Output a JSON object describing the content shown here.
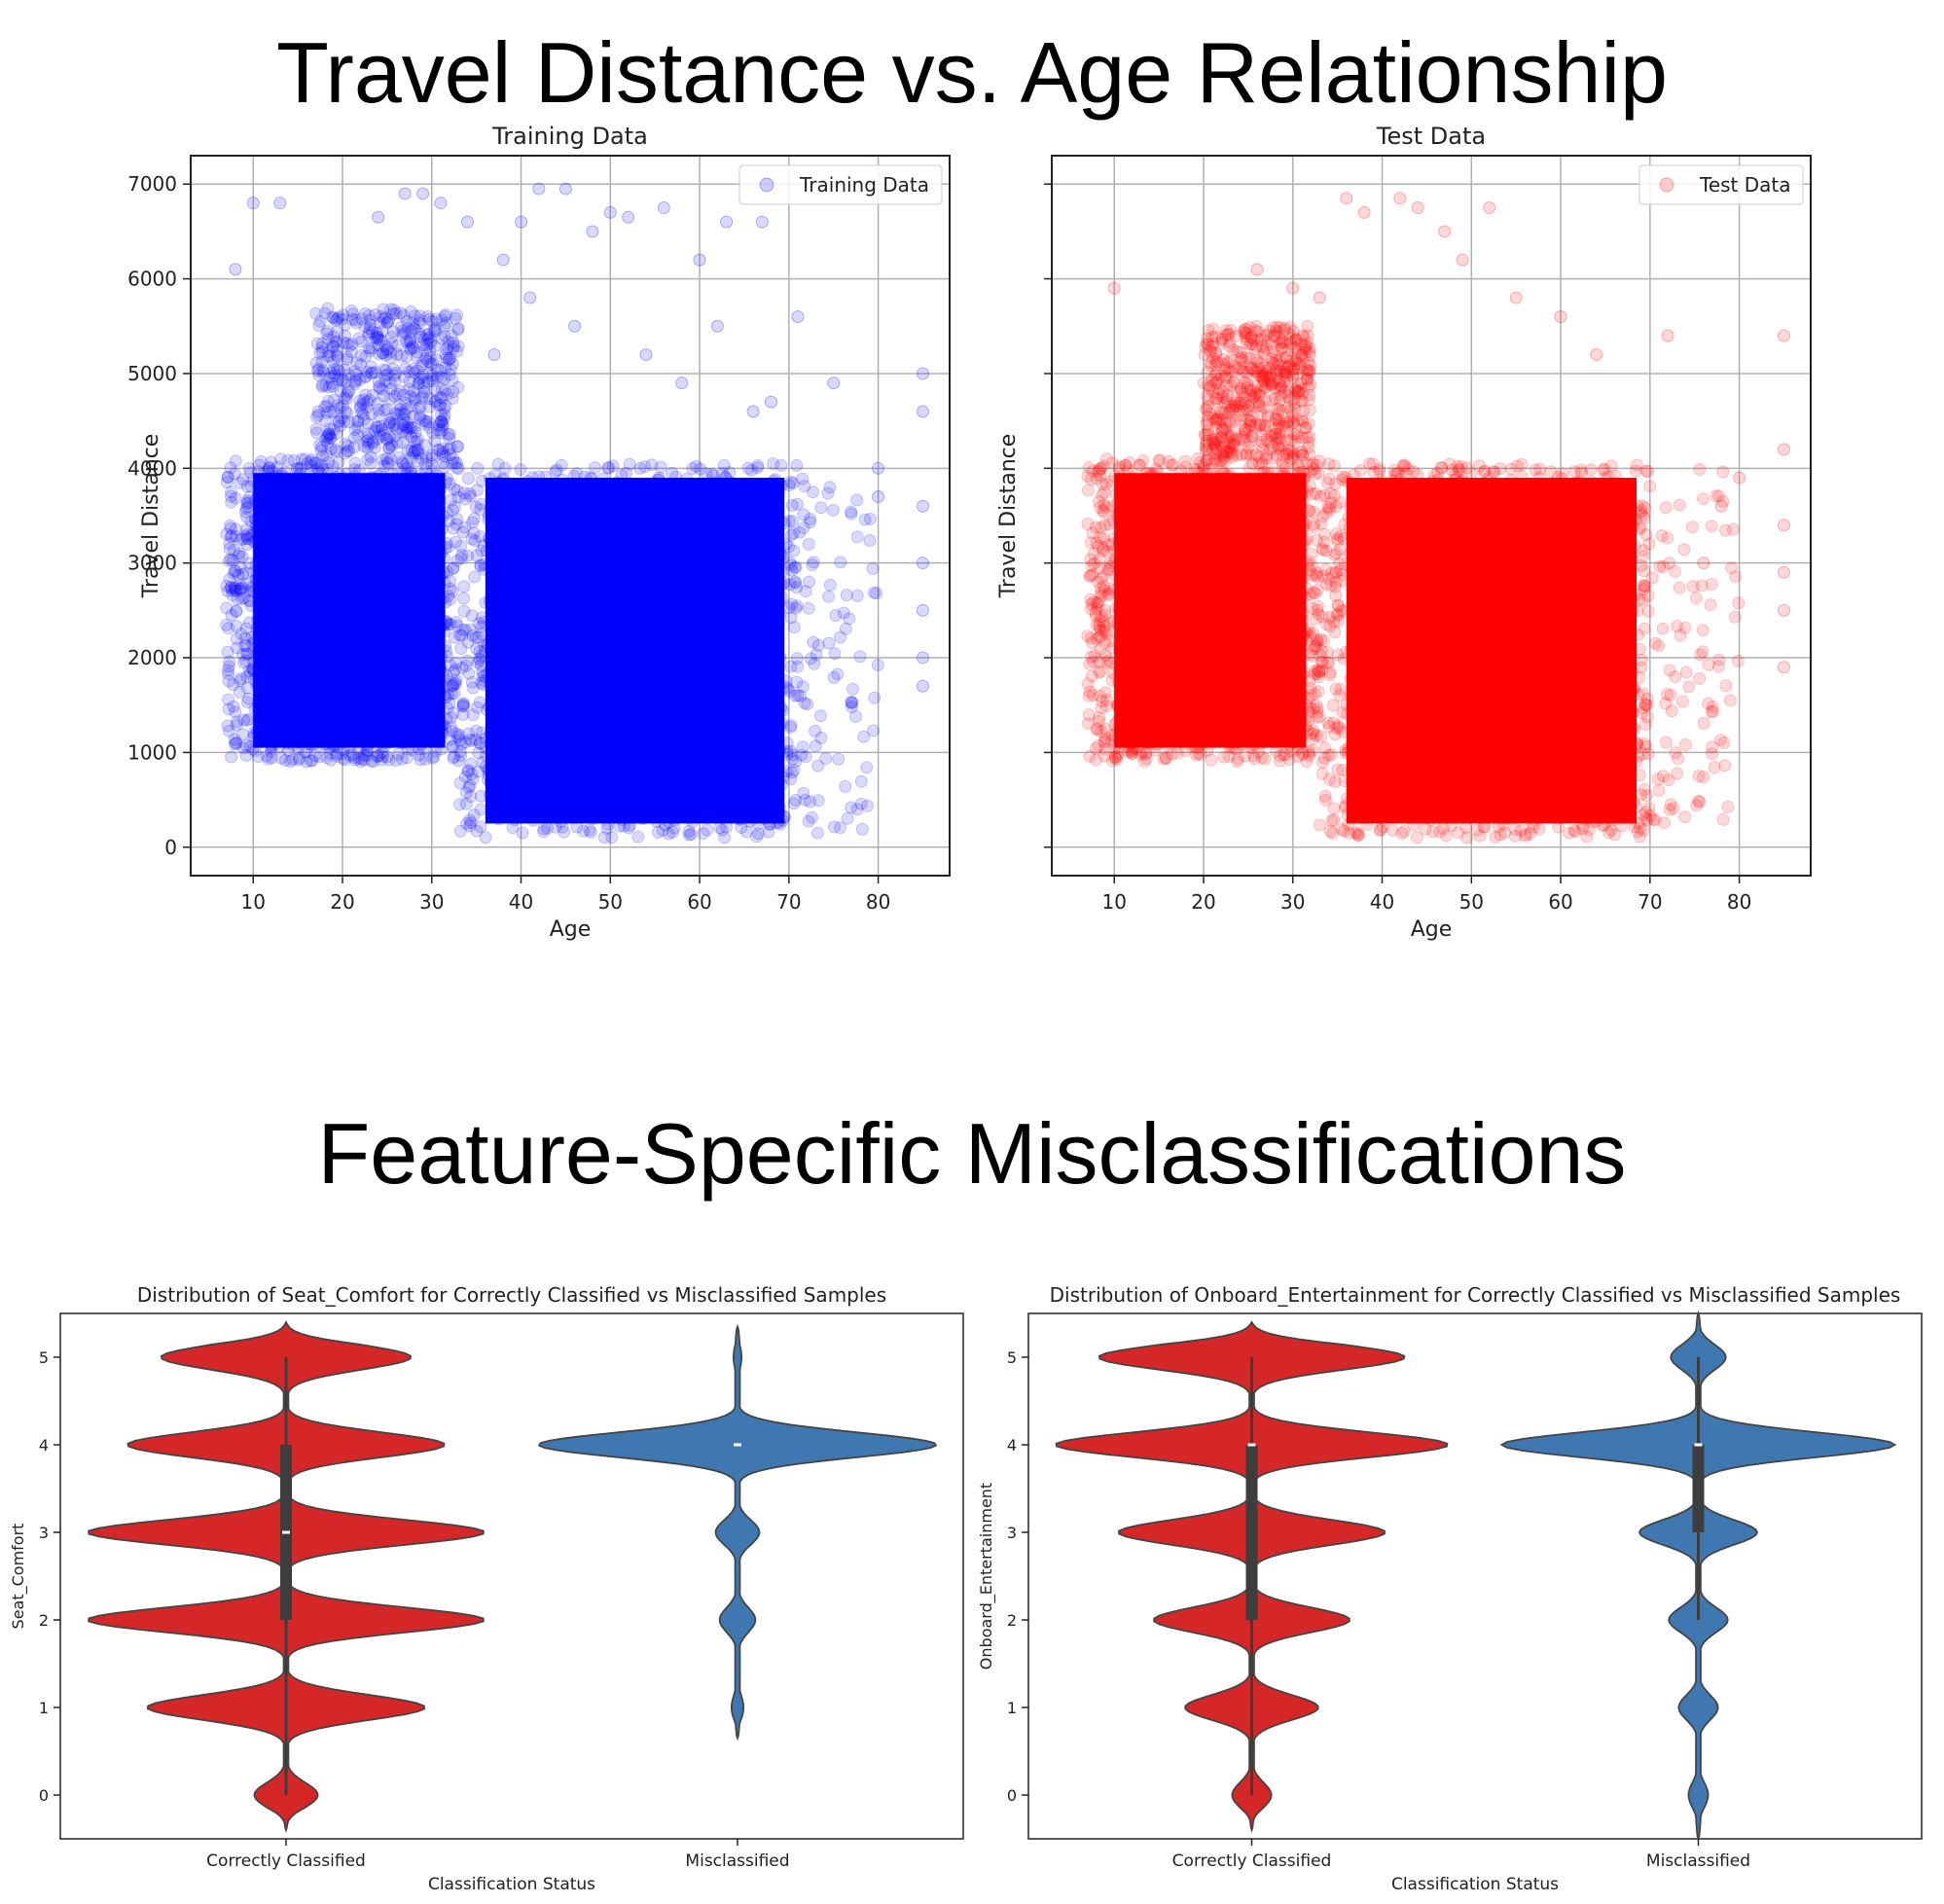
{
  "sections": {
    "top_title": "Travel Distance vs. Age Relationship",
    "bottom_title": "Feature-Specific Misclassifications"
  },
  "chart_data": [
    {
      "id": "train",
      "type": "scatter",
      "title": "Training Data",
      "xlabel": "Age",
      "ylabel": "Travel Distance",
      "xlim": [
        3,
        88
      ],
      "ylim": [
        -300,
        7300
      ],
      "xticks": [
        10,
        20,
        30,
        40,
        50,
        60,
        70,
        80
      ],
      "yticks": [
        0,
        1000,
        2000,
        3000,
        4000,
        5000,
        6000,
        7000
      ],
      "grid": true,
      "legend": {
        "position": "top-right",
        "entries": [
          "Training Data"
        ]
      },
      "color": "#0000ff",
      "alpha": 0.15,
      "density_regions": [
        {
          "x": [
            7,
            33
          ],
          "y": [
            900,
            4100
          ],
          "density": "very high"
        },
        {
          "x": [
            17,
            33
          ],
          "y": [
            4100,
            5700
          ],
          "density": "high"
        },
        {
          "x": [
            33,
            71
          ],
          "y": [
            100,
            4050
          ],
          "density": "very high"
        },
        {
          "x": [
            71,
            80
          ],
          "y": [
            100,
            4000
          ],
          "density": "low"
        }
      ],
      "points": [
        [
          8,
          6100
        ],
        [
          10,
          6800
        ],
        [
          13,
          6800
        ],
        [
          24,
          6650
        ],
        [
          27,
          6900
        ],
        [
          29,
          6900
        ],
        [
          31,
          6800
        ],
        [
          34,
          6600
        ],
        [
          38,
          6200
        ],
        [
          40,
          6600
        ],
        [
          42,
          6950
        ],
        [
          45,
          6950
        ],
        [
          48,
          6500
        ],
        [
          50,
          6700
        ],
        [
          52,
          6650
        ],
        [
          56,
          6750
        ],
        [
          60,
          6200
        ],
        [
          63,
          6600
        ],
        [
          67,
          6600
        ],
        [
          71,
          5600
        ],
        [
          75,
          4900
        ],
        [
          80,
          4000
        ],
        [
          80,
          3700
        ],
        [
          85,
          5000
        ],
        [
          85,
          4600
        ],
        [
          85,
          3600
        ],
        [
          85,
          3000
        ],
        [
          85,
          2500
        ],
        [
          85,
          2000
        ],
        [
          85,
          1700
        ],
        [
          37,
          5200
        ],
        [
          41,
          5800
        ],
        [
          46,
          5500
        ],
        [
          54,
          5200
        ],
        [
          58,
          4900
        ],
        [
          62,
          5500
        ],
        [
          66,
          4600
        ],
        [
          68,
          4700
        ]
      ]
    },
    {
      "id": "test",
      "type": "scatter",
      "title": "Test Data",
      "xlabel": "Age",
      "ylabel": "Travel Distance",
      "xlim": [
        3,
        88
      ],
      "ylim": [
        -300,
        7300
      ],
      "xticks": [
        10,
        20,
        30,
        40,
        50,
        60,
        70,
        80
      ],
      "yticks": [
        0,
        1000,
        2000,
        3000,
        4000,
        5000,
        6000,
        7000
      ],
      "grid": true,
      "legend": {
        "position": "top-right",
        "entries": [
          "Test Data"
        ]
      },
      "color": "#ff0000",
      "alpha": 0.15,
      "density_regions": [
        {
          "x": [
            7,
            33
          ],
          "y": [
            900,
            4100
          ],
          "density": "very high"
        },
        {
          "x": [
            20,
            32
          ],
          "y": [
            4100,
            5500
          ],
          "density": "high"
        },
        {
          "x": [
            33,
            70
          ],
          "y": [
            100,
            4050
          ],
          "density": "very high"
        },
        {
          "x": [
            70,
            80
          ],
          "y": [
            100,
            4000
          ],
          "density": "low"
        }
      ],
      "points": [
        [
          10,
          5900
        ],
        [
          36,
          6850
        ],
        [
          38,
          6700
        ],
        [
          42,
          6850
        ],
        [
          44,
          6750
        ],
        [
          47,
          6500
        ],
        [
          49,
          6200
        ],
        [
          52,
          6750
        ],
        [
          30,
          5900
        ],
        [
          26,
          6100
        ],
        [
          33,
          5800
        ],
        [
          55,
          5800
        ],
        [
          60,
          5600
        ],
        [
          64,
          5200
        ],
        [
          72,
          5400
        ],
        [
          85,
          5400
        ],
        [
          85,
          4200
        ],
        [
          85,
          3400
        ],
        [
          85,
          2900
        ],
        [
          85,
          2500
        ],
        [
          85,
          1900
        ],
        [
          80,
          3900
        ],
        [
          78,
          3600
        ],
        [
          76,
          3000
        ]
      ]
    },
    {
      "id": "seat",
      "type": "violin",
      "title": "Distribution of Seat_Comfort for Correctly Classified vs Misclassified Samples",
      "xlabel": "Classification Status",
      "ylabel": "Seat_Comfort",
      "categories": [
        "Correctly Classified",
        "Misclassified"
      ],
      "ylim": [
        -0.5,
        5.5
      ],
      "yticks": [
        0,
        1,
        2,
        3,
        4,
        5
      ],
      "series": [
        {
          "color": "#d62728",
          "extent": [
            -0.4,
            5.4
          ],
          "modes": [
            [
              0,
              0.16
            ],
            [
              1,
              0.7
            ],
            [
              2,
              1.0
            ],
            [
              3,
              1.0
            ],
            [
              4,
              0.8
            ],
            [
              5,
              0.63
            ]
          ],
          "q1": 2,
          "median": 3,
          "q3": 4,
          "whisker": [
            0,
            5
          ]
        },
        {
          "color": "#3f78b0",
          "extent": [
            0.65,
            5.35
          ],
          "modes": [
            [
              1,
              0.03
            ],
            [
              2,
              0.09
            ],
            [
              3,
              0.11
            ],
            [
              4,
              1.0
            ],
            [
              5,
              0.02
            ]
          ],
          "q1": 4,
          "median": 4,
          "q3": 4,
          "whisker": [
            4,
            4
          ]
        }
      ]
    },
    {
      "id": "entertainment",
      "type": "violin",
      "title": "Distribution of Onboard_Entertainment for Correctly Classified vs Misclassified Samples",
      "xlabel": "Classification Status",
      "ylabel": "Onboard_Entertainment",
      "categories": [
        "Correctly Classified",
        "Misclassified"
      ],
      "ylim": [
        -0.5,
        5.5
      ],
      "yticks": [
        0,
        1,
        2,
        3,
        4,
        5
      ],
      "series": [
        {
          "color": "#d62728",
          "extent": [
            -0.4,
            5.4
          ],
          "modes": [
            [
              0,
              0.1
            ],
            [
              1,
              0.34
            ],
            [
              2,
              0.5
            ],
            [
              3,
              0.68
            ],
            [
              4,
              1.0
            ],
            [
              5,
              0.78
            ]
          ],
          "q1": 2,
          "median": 4,
          "q3": 4,
          "whisker": [
            0,
            5
          ]
        },
        {
          "color": "#3f78b0",
          "extent": [
            -0.5,
            5.5
          ],
          "modes": [
            [
              0,
              0.05
            ],
            [
              1,
              0.1
            ],
            [
              2,
              0.15
            ],
            [
              3,
              0.3
            ],
            [
              4,
              1.0
            ],
            [
              5,
              0.14
            ]
          ],
          "q1": 3,
          "median": 4,
          "q3": 4,
          "whisker": [
            2,
            5
          ]
        }
      ]
    }
  ]
}
